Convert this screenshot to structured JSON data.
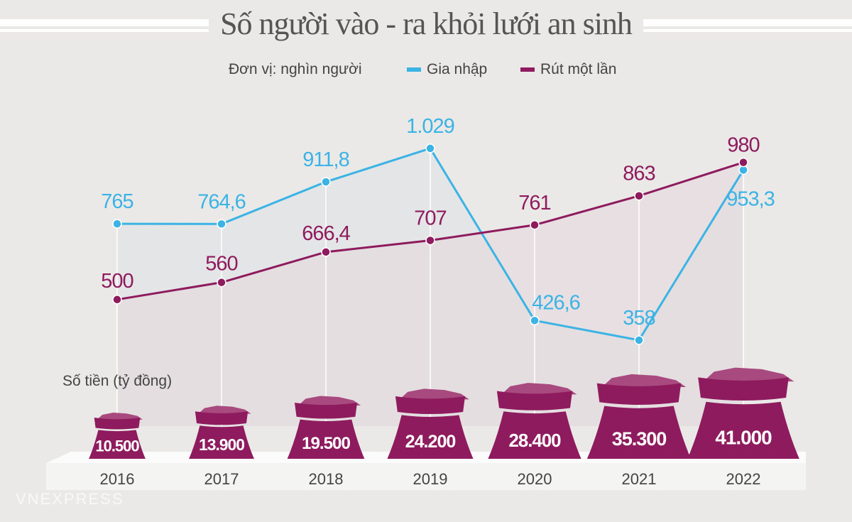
{
  "chart_data": {
    "type": "line",
    "title": "Số người vào - ra khỏi lưới an sinh",
    "unit_label": "Đơn vị: nghìn người",
    "categories": [
      "2016",
      "2017",
      "2018",
      "2019",
      "2020",
      "2021",
      "2022"
    ],
    "series": [
      {
        "name": "Gia nhập",
        "color": "#3bb4e5",
        "values": [
          765,
          764.6,
          911.8,
          1029,
          426.6,
          358,
          953.3
        ],
        "labels": [
          "765",
          "764,6",
          "911,8",
          "1.029",
          "426,6",
          "358",
          "953,3"
        ]
      },
      {
        "name": "Rút một lần",
        "color": "#8e1b5e",
        "values": [
          500,
          560,
          666.4,
          707,
          761,
          863,
          980
        ],
        "labels": [
          "500",
          "560",
          "666,4",
          "707",
          "761",
          "863",
          "980"
        ]
      }
    ],
    "money": {
      "label": "Số tiền (tỷ đồng)",
      "color": "#8e1b5e",
      "values": [
        10500,
        13900,
        19500,
        24200,
        28400,
        35300,
        41000
      ],
      "labels": [
        "10.500",
        "13.900",
        "19.500",
        "24.200",
        "28.400",
        "35.300",
        "41.000"
      ]
    },
    "grid": false,
    "legend_placement": "top"
  },
  "watermark": "VNEXPRESS"
}
